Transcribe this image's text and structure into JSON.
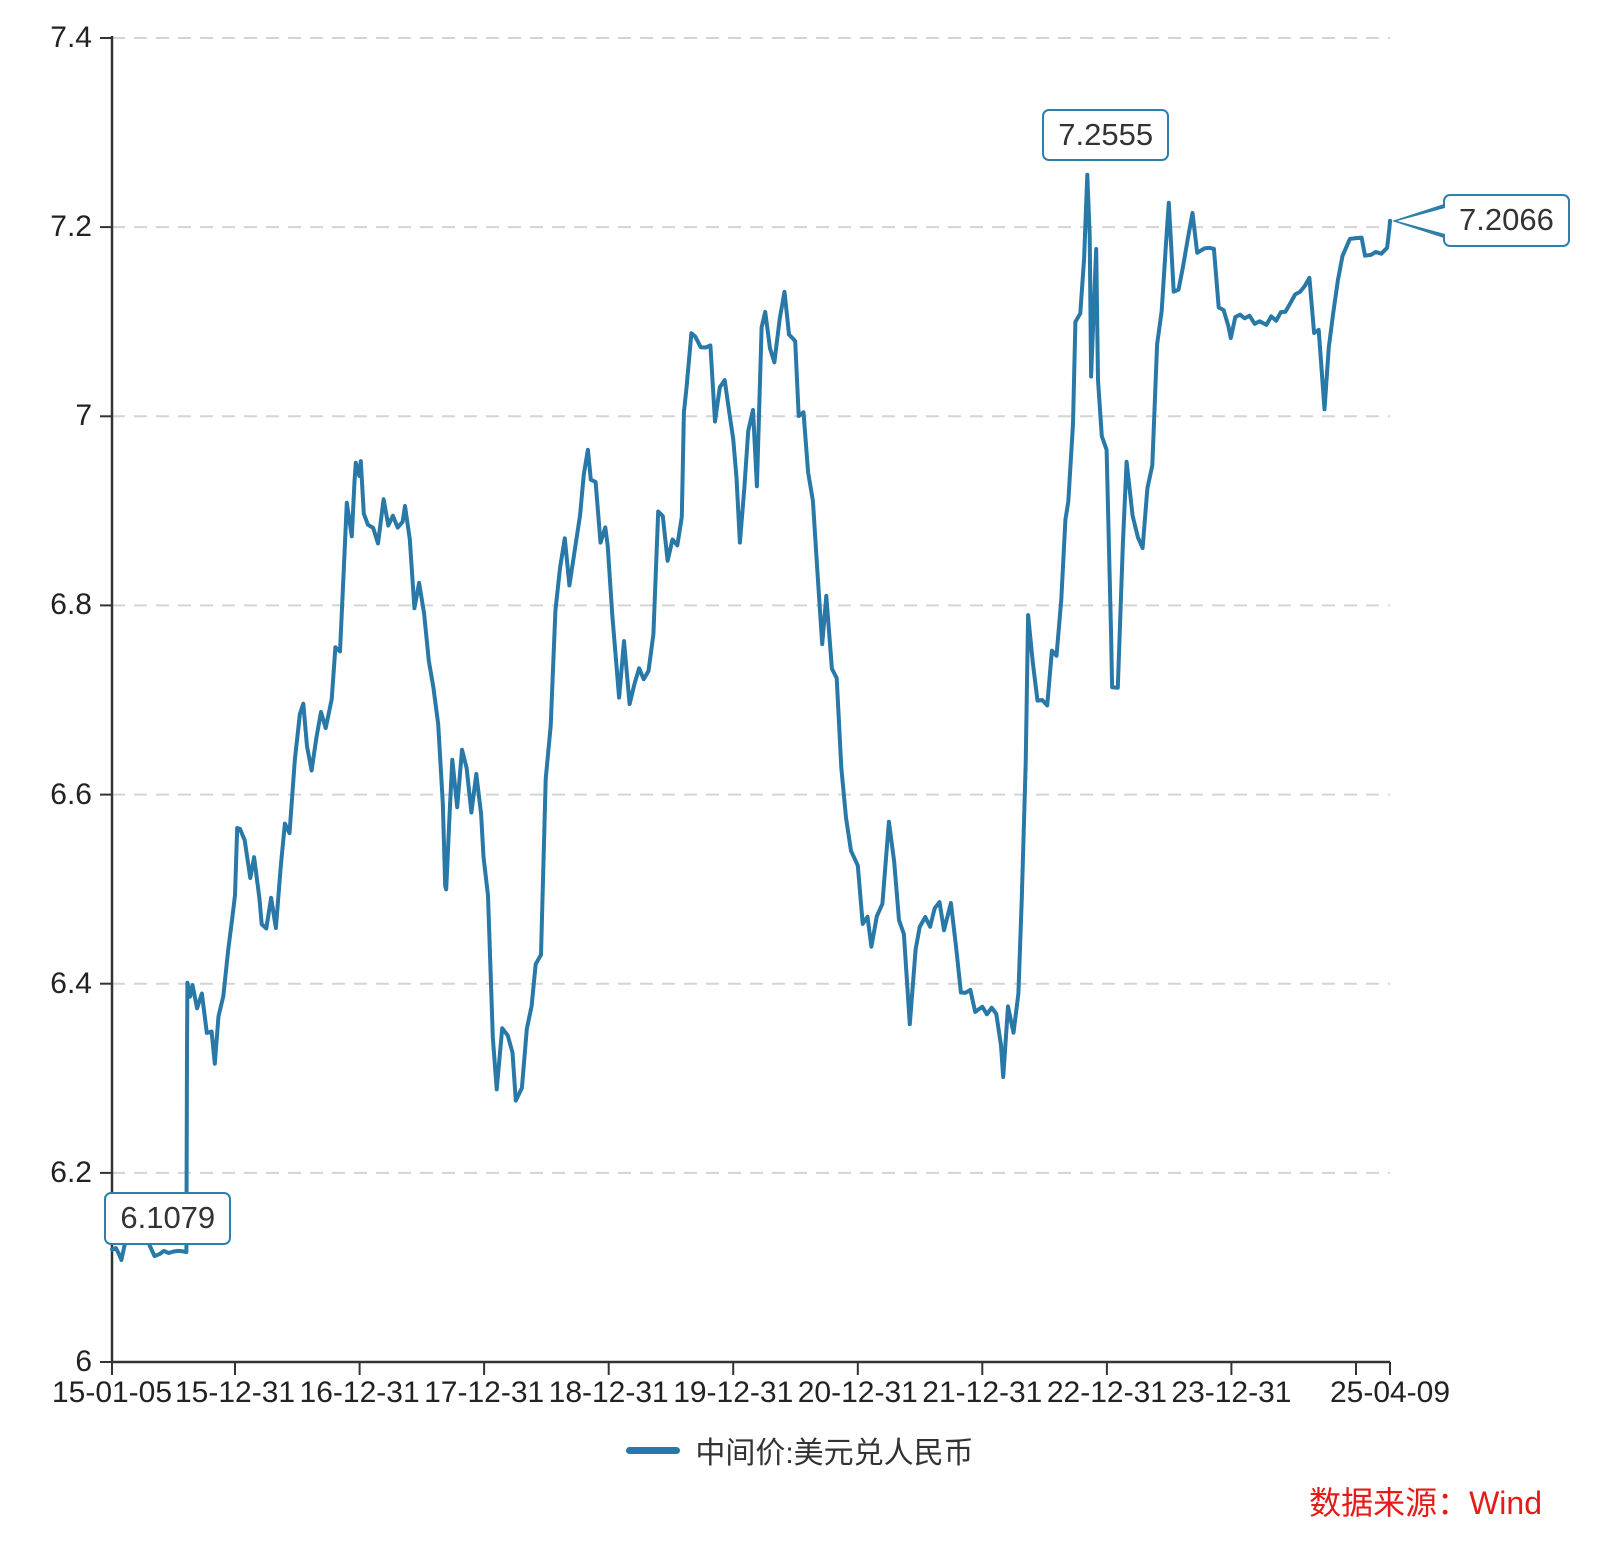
{
  "legend": {
    "series_label": "中间价:美元兑人民币"
  },
  "source": {
    "text": "数据来源：Wind"
  },
  "colors": {
    "line": "#2878a8",
    "grid": "#d4d4d4",
    "axis": "#333333",
    "annotation_border": "#2e7fab",
    "annotation_text": "#333333",
    "tick_label": "#222222",
    "source_text": "#e41b17",
    "background": "#ffffff"
  },
  "chart_data": {
    "type": "line",
    "title": "",
    "series_name": "中间价:美元兑人民币",
    "xlabel": "",
    "ylabel": "",
    "ylim": [
      6.0,
      7.4
    ],
    "x_range": [
      "15-01-05",
      "25-04-09"
    ],
    "grid": "horizontal-dashed",
    "legend_position": "bottom-center",
    "y_ticks": [
      {
        "value": 6.0,
        "label": "6"
      },
      {
        "value": 6.2,
        "label": "6.2"
      },
      {
        "value": 6.4,
        "label": "6.4"
      },
      {
        "value": 6.6,
        "label": "6.6"
      },
      {
        "value": 6.8,
        "label": "6.8"
      },
      {
        "value": 7.0,
        "label": "7"
      },
      {
        "value": 7.2,
        "label": "7.2"
      },
      {
        "value": 7.4,
        "label": "7.4"
      }
    ],
    "x_ticks": [
      {
        "date": "15-01-05",
        "label": "15-01-05"
      },
      {
        "date": "15-12-31",
        "label": "15-12-31"
      },
      {
        "date": "16-12-31",
        "label": "16-12-31"
      },
      {
        "date": "17-12-31",
        "label": "17-12-31"
      },
      {
        "date": "18-12-31",
        "label": "18-12-31"
      },
      {
        "date": "19-12-31",
        "label": "19-12-31"
      },
      {
        "date": "20-12-31",
        "label": "20-12-31"
      },
      {
        "date": "21-12-31",
        "label": "21-12-31"
      },
      {
        "date": "22-12-31",
        "label": "22-12-31"
      },
      {
        "date": "23-12-31",
        "label": "23-12-31"
      },
      {
        "date": "24-12-31",
        "label": ""
      },
      {
        "date": "25-04-09",
        "label": "25-04-09"
      }
    ],
    "annotations": [
      {
        "date": "15-02-02",
        "value": 6.1079,
        "label": "6.1079",
        "placement": "below-left"
      },
      {
        "date": "22-11-04",
        "value": 7.2555,
        "label": "7.2555",
        "placement": "above"
      },
      {
        "date": "25-04-09",
        "value": 7.2066,
        "label": "7.2066",
        "placement": "right-callout"
      }
    ],
    "points": [
      [
        "15-01-05",
        6.119
      ],
      [
        "15-01-16",
        6.1205
      ],
      [
        "15-01-23",
        6.116
      ],
      [
        "15-02-02",
        6.1079
      ],
      [
        "15-02-13",
        6.1261
      ],
      [
        "15-03-06",
        6.1513
      ],
      [
        "15-03-20",
        6.1475
      ],
      [
        "15-04-03",
        6.138
      ],
      [
        "15-04-17",
        6.129
      ],
      [
        "15-05-08",
        6.112
      ],
      [
        "15-05-22",
        6.114
      ],
      [
        "15-06-05",
        6.1175
      ],
      [
        "15-06-19",
        6.1153
      ],
      [
        "15-07-03",
        6.1168
      ],
      [
        "15-07-17",
        6.1175
      ],
      [
        "15-07-31",
        6.1169
      ],
      [
        "15-08-10",
        6.1162
      ],
      [
        "15-08-11",
        6.2298
      ],
      [
        "15-08-12",
        6.3306
      ],
      [
        "15-08-13",
        6.401
      ],
      [
        "15-08-21",
        6.3864
      ],
      [
        "15-08-28",
        6.3986
      ],
      [
        "15-09-11",
        6.374
      ],
      [
        "15-09-25",
        6.3896
      ],
      [
        "15-10-09",
        6.348
      ],
      [
        "15-10-23",
        6.3495
      ],
      [
        "15-11-02",
        6.3154
      ],
      [
        "15-11-13",
        6.3655
      ],
      [
        "15-11-27",
        6.3867
      ],
      [
        "15-12-11",
        6.4358
      ],
      [
        "15-12-24",
        6.4731
      ],
      [
        "15-12-31",
        6.4936
      ],
      [
        "16-01-07",
        6.5646
      ],
      [
        "16-01-15",
        6.5637
      ],
      [
        "16-01-29",
        6.5516
      ],
      [
        "16-02-15",
        6.5118
      ],
      [
        "16-02-26",
        6.5338
      ],
      [
        "16-03-11",
        6.4905
      ],
      [
        "16-03-18",
        6.4628
      ],
      [
        "16-04-01",
        6.4585
      ],
      [
        "16-04-15",
        6.4908
      ],
      [
        "16-04-29",
        6.4589
      ],
      [
        "16-05-13",
        6.5246
      ],
      [
        "16-05-25",
        6.5693
      ],
      [
        "16-06-08",
        6.5593
      ],
      [
        "16-06-24",
        6.6375
      ],
      [
        "16-07-08",
        6.6853
      ],
      [
        "16-07-18",
        6.6961
      ],
      [
        "16-07-29",
        6.6511
      ],
      [
        "16-08-12",
        6.6255
      ],
      [
        "16-08-26",
        6.6601
      ],
      [
        "16-09-09",
        6.6873
      ],
      [
        "16-09-23",
        6.6703
      ],
      [
        "16-10-10",
        6.7008
      ],
      [
        "16-10-21",
        6.7558
      ],
      [
        "16-11-04",
        6.7514
      ],
      [
        "16-11-14",
        6.8291
      ],
      [
        "16-11-24",
        6.9085
      ],
      [
        "16-12-08",
        6.8731
      ],
      [
        "16-12-16",
        6.9312
      ],
      [
        "16-12-20",
        6.9508
      ],
      [
        "16-12-30",
        6.937
      ],
      [
        "17-01-04",
        6.9526
      ],
      [
        "17-01-13",
        6.8972
      ],
      [
        "17-01-25",
        6.8854
      ],
      [
        "17-02-10",
        6.8819
      ],
      [
        "17-02-24",
        6.8655
      ],
      [
        "17-03-10",
        6.9123
      ],
      [
        "17-03-24",
        6.8845
      ],
      [
        "17-04-07",
        6.8949
      ],
      [
        "17-04-21",
        6.8823
      ],
      [
        "17-05-05",
        6.8884
      ],
      [
        "17-05-12",
        6.9051
      ],
      [
        "17-05-26",
        6.8698
      ],
      [
        "17-06-09",
        6.7971
      ],
      [
        "17-06-23",
        6.8238
      ],
      [
        "17-07-07",
        6.7914
      ],
      [
        "17-07-21",
        6.7415
      ],
      [
        "17-08-04",
        6.7132
      ],
      [
        "17-08-18",
        6.6744
      ],
      [
        "17-09-01",
        6.5909
      ],
      [
        "17-09-08",
        6.5032
      ],
      [
        "17-09-11",
        6.4997
      ],
      [
        "17-09-22",
        6.5861
      ],
      [
        "17-09-29",
        6.6369
      ],
      [
        "17-10-13",
        6.5866
      ],
      [
        "17-10-27",
        6.6473
      ],
      [
        "17-11-10",
        6.6282
      ],
      [
        "17-11-24",
        6.581
      ],
      [
        "17-12-08",
        6.6218
      ],
      [
        "17-12-22",
        6.5795
      ],
      [
        "17-12-29",
        6.5342
      ],
      [
        "18-01-12",
        6.4932
      ],
      [
        "18-01-26",
        6.3436
      ],
      [
        "18-02-07",
        6.2882
      ],
      [
        "18-02-23",
        6.353
      ],
      [
        "18-03-09",
        6.3451
      ],
      [
        "18-03-23",
        6.3272
      ],
      [
        "18-04-02",
        6.2764
      ],
      [
        "18-04-20",
        6.2897
      ],
      [
        "18-05-04",
        6.3521
      ],
      [
        "18-05-18",
        6.3763
      ],
      [
        "18-05-30",
        6.4207
      ],
      [
        "18-06-15",
        6.4306
      ],
      [
        "18-06-29",
        6.6166
      ],
      [
        "18-07-13",
        6.6727
      ],
      [
        "18-07-27",
        6.7942
      ],
      [
        "18-08-10",
        6.8395
      ],
      [
        "18-08-24",
        6.871
      ],
      [
        "18-09-07",
        6.8212
      ],
      [
        "18-09-21",
        6.8538
      ],
      [
        "18-10-08",
        6.8957
      ],
      [
        "18-10-19",
        6.9387
      ],
      [
        "18-10-31",
        6.9646
      ],
      [
        "18-11-09",
        6.9329
      ],
      [
        "18-11-23",
        6.9306
      ],
      [
        "18-12-07",
        6.8664
      ],
      [
        "18-12-21",
        6.8825
      ],
      [
        "18-12-28",
        6.8632
      ],
      [
        "19-01-11",
        6.7909
      ],
      [
        "19-01-31",
        6.7025
      ],
      [
        "19-02-15",
        6.7623
      ],
      [
        "19-03-01",
        6.6957
      ],
      [
        "19-03-15",
        6.7167
      ],
      [
        "19-03-29",
        6.7335
      ],
      [
        "19-04-12",
        6.722
      ],
      [
        "19-04-26",
        6.7307
      ],
      [
        "19-05-10",
        6.7695
      ],
      [
        "19-05-24",
        6.8993
      ],
      [
        "19-06-07",
        6.8945
      ],
      [
        "19-06-21",
        6.8472
      ],
      [
        "19-07-05",
        6.8697
      ],
      [
        "19-07-19",
        6.8635
      ],
      [
        "19-08-02",
        6.8935
      ],
      [
        "19-08-08",
        7.0039
      ],
      [
        "19-08-16",
        7.0312
      ],
      [
        "19-08-30",
        7.0879
      ],
      [
        "19-09-11",
        7.0843
      ],
      [
        "19-09-27",
        7.0731
      ],
      [
        "19-10-11",
        7.0727
      ],
      [
        "19-10-25",
        7.0749
      ],
      [
        "19-11-08",
        6.9945
      ],
      [
        "19-11-22",
        7.0306
      ],
      [
        "19-12-06",
        7.0383
      ],
      [
        "19-12-20",
        7.0025
      ],
      [
        "19-12-31",
        6.9762
      ],
      [
        "20-01-10",
        6.9351
      ],
      [
        "20-01-20",
        6.8664
      ],
      [
        "20-02-03",
        6.9249
      ],
      [
        "20-02-14",
        6.9843
      ],
      [
        "20-02-28",
        7.0066
      ],
      [
        "20-03-09",
        6.926
      ],
      [
        "20-03-23",
        7.094
      ],
      [
        "20-04-03",
        7.1104
      ],
      [
        "20-04-17",
        7.0718
      ],
      [
        "20-04-30",
        7.0571
      ],
      [
        "20-05-15",
        7.103
      ],
      [
        "20-05-29",
        7.1316
      ],
      [
        "20-06-12",
        7.0865
      ],
      [
        "20-06-30",
        7.0795
      ],
      [
        "20-07-10",
        7.0003
      ],
      [
        "20-07-24",
        7.0043
      ],
      [
        "20-08-07",
        6.9408
      ],
      [
        "20-08-21",
        6.9107
      ],
      [
        "20-09-04",
        6.8359
      ],
      [
        "20-09-18",
        6.7591
      ],
      [
        "20-09-30",
        6.8101
      ],
      [
        "20-10-16",
        6.7332
      ],
      [
        "20-10-30",
        6.7232
      ],
      [
        "20-11-13",
        6.6285
      ],
      [
        "20-11-27",
        6.5755
      ],
      [
        "20-12-11",
        6.5405
      ],
      [
        "20-12-31",
        6.5249
      ],
      [
        "21-01-15",
        6.4633
      ],
      [
        "21-01-29",
        6.4709
      ],
      [
        "21-02-10",
        6.4391
      ],
      [
        "21-02-26",
        6.4713
      ],
      [
        "21-03-12",
        6.4845
      ],
      [
        "21-03-31",
        6.5713
      ],
      [
        "21-04-16",
        6.5288
      ],
      [
        "21-04-30",
        6.4672
      ],
      [
        "21-05-14",
        6.4525
      ],
      [
        "21-06-01",
        6.3572
      ],
      [
        "21-06-18",
        6.4361
      ],
      [
        "21-06-30",
        6.4601
      ],
      [
        "21-07-16",
        6.4705
      ],
      [
        "21-07-30",
        6.4602
      ],
      [
        "21-08-13",
        6.4799
      ],
      [
        "21-08-27",
        6.4863
      ],
      [
        "21-09-10",
        6.4566
      ],
      [
        "21-09-30",
        6.4854
      ],
      [
        "21-10-15",
        6.4386
      ],
      [
        "21-10-29",
        6.3907
      ],
      [
        "21-11-12",
        6.3904
      ],
      [
        "21-11-26",
        6.3936
      ],
      [
        "21-12-10",
        6.3702
      ],
      [
        "21-12-31",
        6.3757
      ],
      [
        "22-01-14",
        6.3677
      ],
      [
        "22-01-28",
        6.3746
      ],
      [
        "22-02-11",
        6.3681
      ],
      [
        "22-02-25",
        6.3346
      ],
      [
        "22-03-01",
        6.3014
      ],
      [
        "22-03-15",
        6.376
      ],
      [
        "22-03-31",
        6.3482
      ],
      [
        "22-04-15",
        6.3896
      ],
      [
        "22-04-25",
        6.4909
      ],
      [
        "22-05-06",
        6.6332
      ],
      [
        "22-05-13",
        6.7898
      ],
      [
        "22-05-27",
        6.7387
      ],
      [
        "22-06-10",
        6.6994
      ],
      [
        "22-06-24",
        6.7
      ],
      [
        "22-07-08",
        6.6943
      ],
      [
        "22-07-22",
        6.7522
      ],
      [
        "22-08-05",
        6.7467
      ],
      [
        "22-08-19",
        6.8065
      ],
      [
        "22-08-31",
        6.8906
      ],
      [
        "22-09-09",
        6.9098
      ],
      [
        "22-09-23",
        6.992
      ],
      [
        "22-09-30",
        7.0998
      ],
      [
        "22-10-14",
        7.1088
      ],
      [
        "22-10-25",
        7.1668
      ],
      [
        "22-11-03",
        7.2472
      ],
      [
        "22-11-04",
        7.2555
      ],
      [
        "22-11-11",
        7.1907
      ],
      [
        "22-11-15",
        7.0421
      ],
      [
        "22-11-25",
        7.1339
      ],
      [
        "22-11-30",
        7.1769
      ],
      [
        "22-12-05",
        7.0384
      ],
      [
        "22-12-16",
        6.9791
      ],
      [
        "22-12-30",
        6.9646
      ],
      [
        "23-01-13",
        6.768
      ],
      [
        "23-01-16",
        6.7135
      ],
      [
        "23-02-02",
        6.713
      ],
      [
        "23-02-17",
        6.8659
      ],
      [
        "23-02-28",
        6.9519
      ],
      [
        "23-03-15",
        6.8949
      ],
      [
        "23-03-31",
        6.8717
      ],
      [
        "23-04-14",
        6.8606
      ],
      [
        "23-04-28",
        6.924
      ],
      [
        "23-05-12",
        6.9481
      ],
      [
        "23-05-26",
        7.076
      ],
      [
        "23-06-09",
        7.1115
      ],
      [
        "23-06-21",
        7.1795
      ],
      [
        "23-06-30",
        7.2258
      ],
      [
        "23-07-14",
        7.1318
      ],
      [
        "23-07-28",
        7.1338
      ],
      [
        "23-08-11",
        7.1587
      ],
      [
        "23-08-25",
        7.1883
      ],
      [
        "23-09-08",
        7.215
      ],
      [
        "23-09-22",
        7.1729
      ],
      [
        "23-10-13",
        7.1775
      ],
      [
        "23-10-27",
        7.1782
      ],
      [
        "23-11-10",
        7.1771
      ],
      [
        "23-11-24",
        7.1151
      ],
      [
        "23-12-08",
        7.1123
      ],
      [
        "23-12-22",
        7.0953
      ],
      [
        "23-12-29",
        7.0827
      ],
      [
        "24-01-12",
        7.105
      ],
      [
        "24-01-26",
        7.1074
      ],
      [
        "24-02-09",
        7.1036
      ],
      [
        "24-02-23",
        7.1064
      ],
      [
        "24-03-08",
        7.0978
      ],
      [
        "24-03-22",
        7.1004
      ],
      [
        "24-04-12",
        7.0967
      ],
      [
        "24-04-26",
        7.1056
      ],
      [
        "24-05-10",
        7.1011
      ],
      [
        "24-05-24",
        7.1102
      ],
      [
        "24-06-07",
        7.1106
      ],
      [
        "24-06-21",
        7.1196
      ],
      [
        "24-07-05",
        7.1289
      ],
      [
        "24-07-19",
        7.1315
      ],
      [
        "24-08-02",
        7.1376
      ],
      [
        "24-08-16",
        7.1464
      ],
      [
        "24-08-30",
        7.0881
      ],
      [
        "24-09-13",
        7.0913
      ],
      [
        "24-09-30",
        7.0074
      ],
      [
        "24-10-12",
        7.0731
      ],
      [
        "24-10-25",
        7.109
      ],
      [
        "24-11-08",
        7.1433
      ],
      [
        "24-11-22",
        7.1696
      ],
      [
        "24-12-13",
        7.1876
      ],
      [
        "24-12-31",
        7.1884
      ],
      [
        "25-01-17",
        7.1889
      ],
      [
        "25-01-27",
        7.1698
      ],
      [
        "25-02-14",
        7.1706
      ],
      [
        "25-02-28",
        7.1738
      ],
      [
        "25-03-14",
        7.1719
      ],
      [
        "25-03-31",
        7.1782
      ],
      [
        "25-04-07",
        7.198
      ],
      [
        "25-04-09",
        7.2066
      ]
    ]
  }
}
